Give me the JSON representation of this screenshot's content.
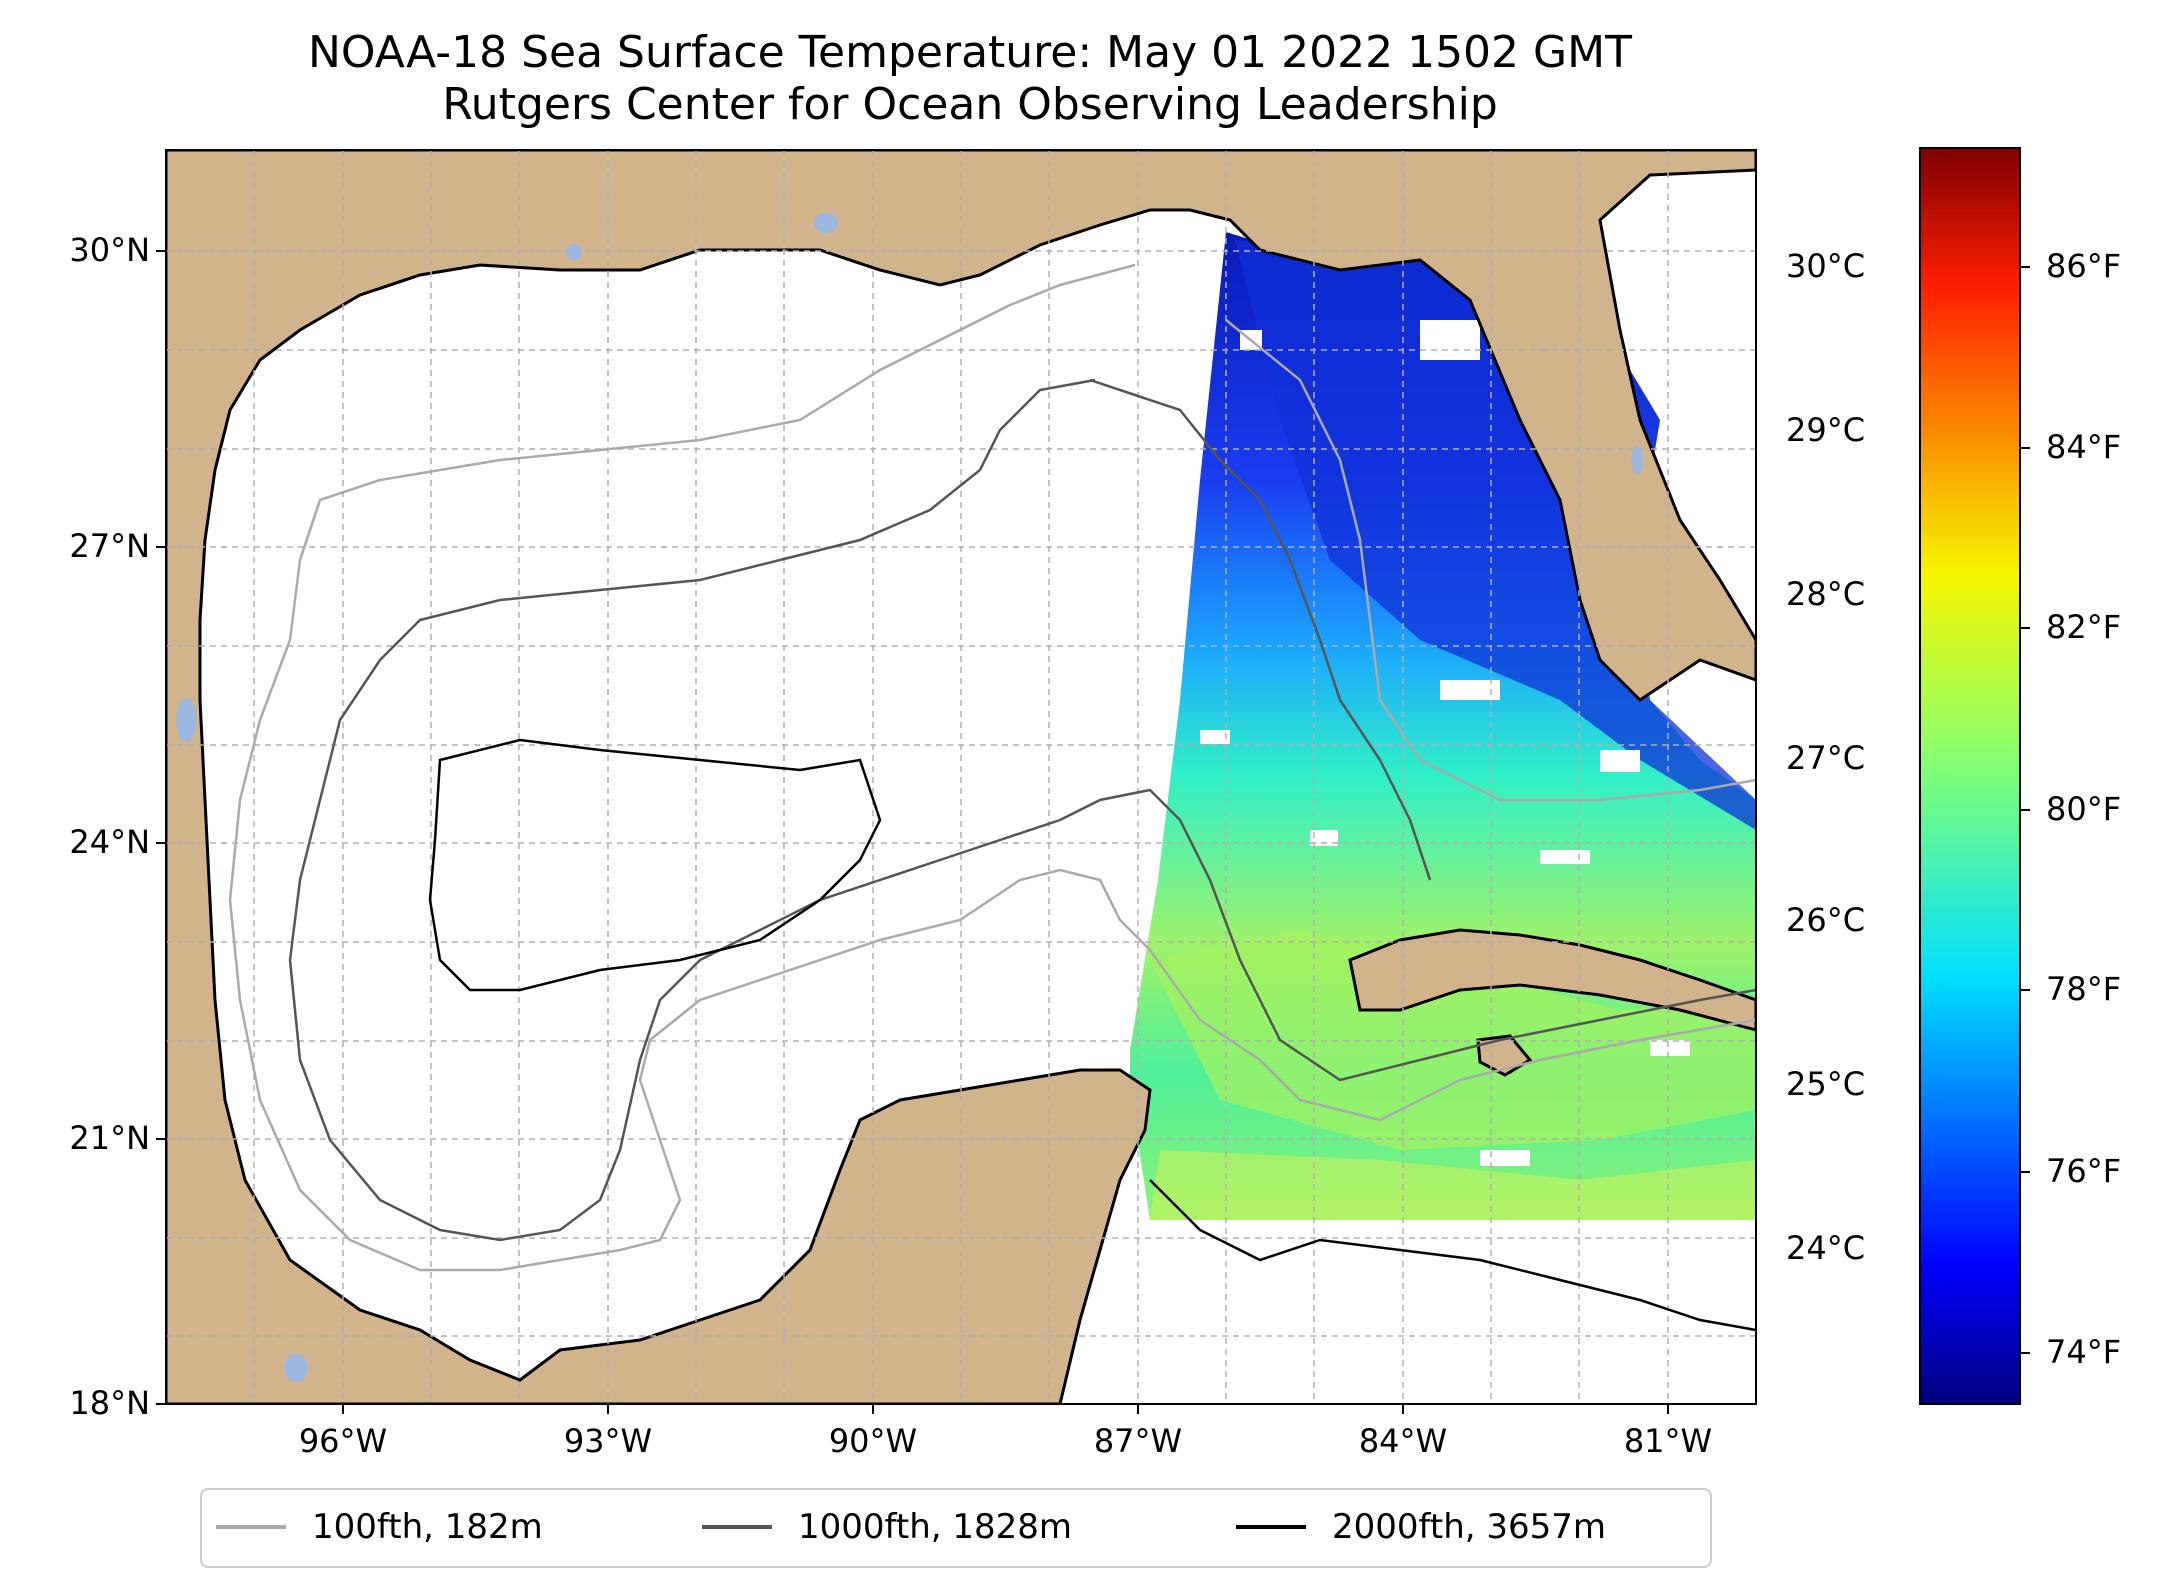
{
  "title": {
    "line1": "NOAA-18 Sea Surface Temperature: May 01 2022 1502 GMT",
    "line2": "Rutgers Center for Ocean Observing Leadership"
  },
  "colors": {
    "land": "#d2b48c",
    "lakes": "#9bb6df",
    "ocean_nodata": "#ffffff",
    "grid": "#b0b0b0",
    "contour_100": "#aaaaaa",
    "contour_1000": "#555555",
    "contour_2000": "#000000"
  },
  "map": {
    "lon_range": [
      -98.0,
      -80.0
    ],
    "lat_range": [
      18.0,
      31.0
    ],
    "lat_ticks": [
      {
        "value": 30,
        "label": "30°N"
      },
      {
        "value": 27,
        "label": "27°N"
      },
      {
        "value": 24,
        "label": "24°N"
      },
      {
        "value": 21,
        "label": "21°N"
      },
      {
        "value": 18,
        "label": "18°N"
      }
    ],
    "lon_ticks": [
      {
        "value": -96,
        "label": "96°W"
      },
      {
        "value": -93,
        "label": "93°W"
      },
      {
        "value": -90,
        "label": "90°W"
      },
      {
        "value": -87,
        "label": "87°W"
      },
      {
        "value": -84,
        "label": "84°W"
      },
      {
        "value": -81,
        "label": "81°W"
      }
    ],
    "celsius_ticks": [
      {
        "value": 30,
        "label": "30°C"
      },
      {
        "value": 29,
        "label": "29°C"
      },
      {
        "value": 28,
        "label": "28°C"
      },
      {
        "value": 27,
        "label": "27°C"
      },
      {
        "value": 26,
        "label": "26°C"
      },
      {
        "value": 25,
        "label": "25°C"
      },
      {
        "value": 24,
        "label": "24°C"
      }
    ]
  },
  "colorbar": {
    "colormap": "jet",
    "range_f": [
      73.2,
      87.2
    ],
    "ticks": [
      {
        "value": 86,
        "label": "86°F"
      },
      {
        "value": 84,
        "label": "84°F"
      },
      {
        "value": 82,
        "label": "82°F"
      },
      {
        "value": 80,
        "label": "80°F"
      },
      {
        "value": 78,
        "label": "78°F"
      },
      {
        "value": 76,
        "label": "76°F"
      },
      {
        "value": 74,
        "label": "74°F"
      }
    ]
  },
  "legend": {
    "items": [
      {
        "label": "100fth, 182m",
        "color": "#aaaaaa"
      },
      {
        "label": "1000fth, 1828m",
        "color": "#555555"
      },
      {
        "label": "2000fth, 3657m",
        "color": "#000000"
      }
    ]
  }
}
